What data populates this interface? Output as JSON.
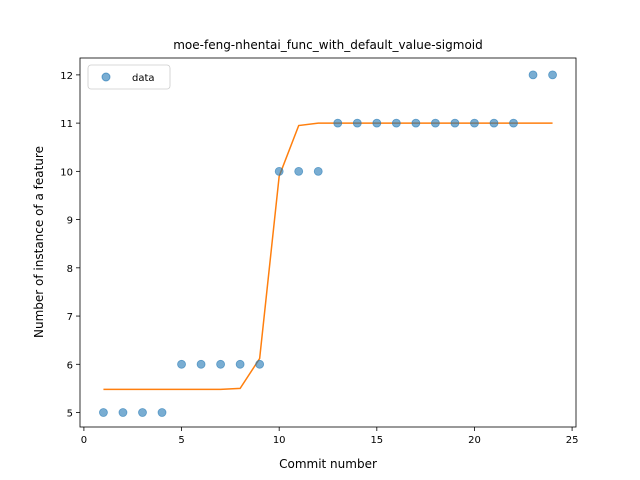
{
  "chart_data": {
    "type": "scatter",
    "title": "moe-feng-nhentai_func_with_default_value-sigmoid",
    "xlabel": "Commit number",
    "ylabel": "Number of instance of a feature",
    "xlim": [
      -0.2,
      25.2
    ],
    "ylim": [
      4.7,
      12.35
    ],
    "xticks": [
      0,
      5,
      10,
      15,
      20,
      25
    ],
    "yticks": [
      5,
      6,
      7,
      8,
      9,
      10,
      11,
      12
    ],
    "legend": {
      "placement": "top-left",
      "entries": [
        "data"
      ]
    },
    "colors": {
      "data": "#1f77b4",
      "fit": "#ff7f0e"
    },
    "series": [
      {
        "name": "data",
        "kind": "scatter",
        "x": [
          1,
          2,
          3,
          4,
          5,
          6,
          7,
          8,
          9,
          10,
          11,
          12,
          13,
          14,
          15,
          16,
          17,
          18,
          19,
          20,
          21,
          22,
          23,
          24
        ],
        "y": [
          5,
          5,
          5,
          5,
          6,
          6,
          6,
          6,
          6,
          10,
          10,
          10,
          11,
          11,
          11,
          11,
          11,
          11,
          11,
          11,
          11,
          11,
          12,
          12
        ]
      },
      {
        "kind": "line",
        "x": [
          1,
          2,
          3,
          4,
          5,
          6,
          7,
          8,
          9,
          10,
          11,
          12,
          13,
          14,
          15,
          16,
          17,
          18,
          19,
          20,
          21,
          22,
          23,
          24
        ],
        "y": [
          5.48,
          5.48,
          5.48,
          5.48,
          5.48,
          5.48,
          5.48,
          5.5,
          6.12,
          9.9,
          10.95,
          11.0,
          11.0,
          11.0,
          11.0,
          11.0,
          11.0,
          11.0,
          11.0,
          11.0,
          11.0,
          11.0,
          11.0,
          11.0
        ]
      }
    ]
  }
}
